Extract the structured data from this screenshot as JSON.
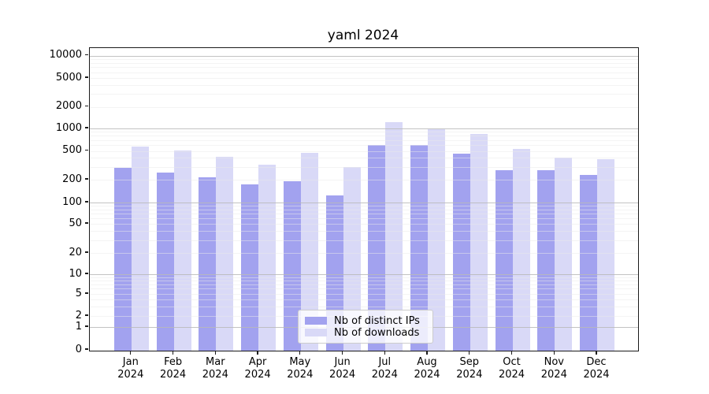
{
  "chart_data": {
    "type": "bar",
    "title": "yaml 2024",
    "categories": [
      "Jan 2024",
      "Feb 2024",
      "Mar 2024",
      "Apr 2024",
      "May 2024",
      "Jun 2024",
      "Jul 2024",
      "Aug 2024",
      "Sep 2024",
      "Oct 2024",
      "Nov 2024",
      "Dec 2024"
    ],
    "series": [
      {
        "name": "Nb of distinct IPs",
        "color": "#a2a2ef",
        "values": [
          290,
          250,
          215,
          175,
          190,
          125,
          600,
          595,
          460,
          270,
          270,
          235
        ]
      },
      {
        "name": "Nb of downloads",
        "color": "#d9d9f7",
        "values": [
          570,
          510,
          410,
          325,
          470,
          300,
          1220,
          980,
          840,
          530,
          405,
          380
        ]
      }
    ],
    "y_axis": {
      "scale": "symlog",
      "ticks": [
        0,
        1,
        2,
        5,
        10,
        20,
        50,
        100,
        200,
        500,
        1000,
        2000,
        5000,
        10000
      ],
      "range": [
        0,
        10000
      ]
    },
    "x_axis": {
      "label_lines": 2
    },
    "grid": "both",
    "legend": {
      "position": "lower center",
      "entries": [
        "Nb of distinct IPs",
        "Nb of downloads"
      ]
    },
    "colors": {
      "bar_ips": "#a2a2ef",
      "bar_downloads": "#d9d9f7",
      "grid_major": "#c0c0c0",
      "grid_minor": "#f0f0f0",
      "spine": "#1a1a1a"
    }
  }
}
